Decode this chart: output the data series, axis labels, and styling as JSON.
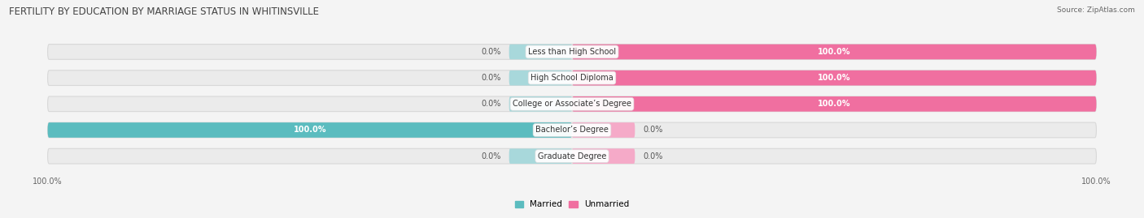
{
  "title": "FERTILITY BY EDUCATION BY MARRIAGE STATUS IN WHITINSVILLE",
  "source": "Source: ZipAtlas.com",
  "categories": [
    "Less than High School",
    "High School Diploma",
    "College or Associate’s Degree",
    "Bachelor’s Degree",
    "Graduate Degree"
  ],
  "married": [
    0.0,
    0.0,
    0.0,
    100.0,
    0.0
  ],
  "unmarried": [
    100.0,
    100.0,
    100.0,
    0.0,
    0.0
  ],
  "married_color": "#5bbcbf",
  "unmarried_color": "#f06fa0",
  "married_stub_color": "#a8d8db",
  "unmarried_stub_color": "#f5aac8",
  "bar_bg_color": "#ebebeb",
  "bar_bg_edge": "#d8d8d8",
  "fig_bg_color": "#f4f4f4",
  "title_fontsize": 8.5,
  "source_fontsize": 6.5,
  "label_fontsize": 7.0,
  "cat_fontsize": 7.0,
  "tick_fontsize": 7.0,
  "ylabel_married": "Married",
  "ylabel_unmarried": "Unmarried",
  "stub_pct": 12,
  "total_width": 100
}
